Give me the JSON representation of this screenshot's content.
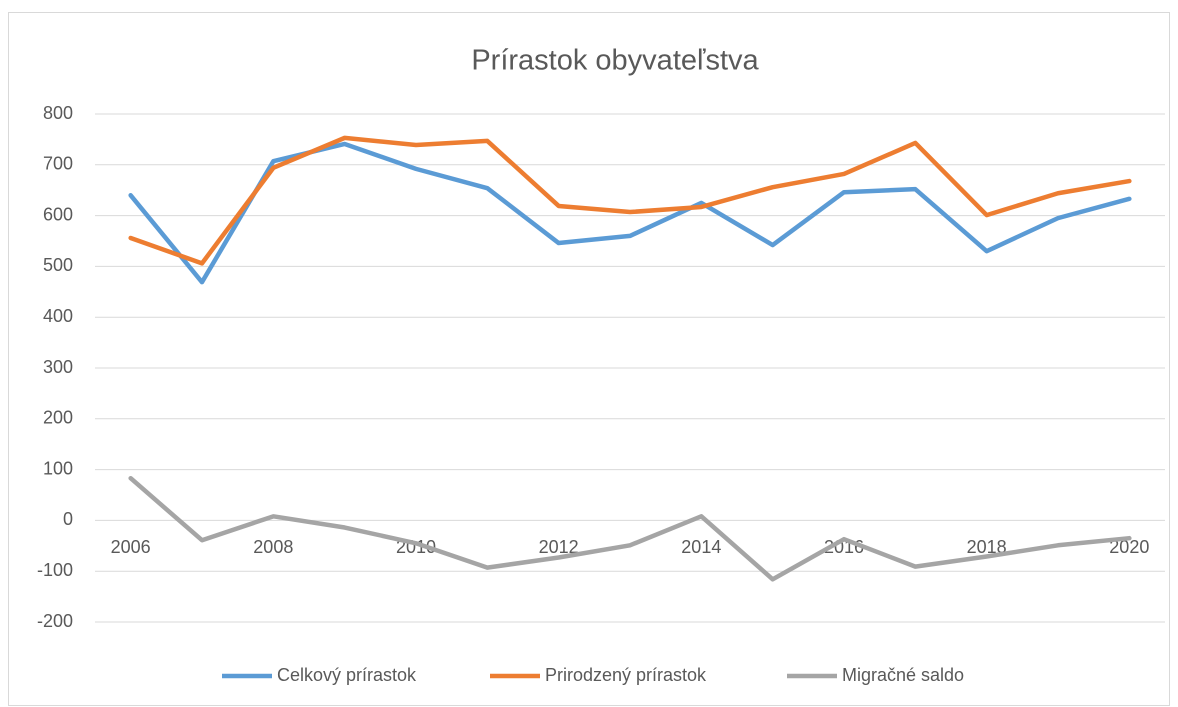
{
  "chart_data": {
    "type": "line",
    "title": "Prírastok obyvateľstva",
    "categories": [
      "2006",
      null,
      "2008",
      null,
      "2010",
      null,
      "2012",
      null,
      "2014",
      null,
      "2016",
      null,
      "2018",
      null,
      "2020"
    ],
    "series": [
      {
        "name": "Celkový prírastok",
        "color": "#5b9bd5",
        "values": [
          640,
          469,
          707,
          741,
          692,
          654,
          546,
          560,
          625,
          542,
          646,
          652,
          530,
          595,
          633
        ]
      },
      {
        "name": "Prirodzený prírastok",
        "color": "#ed7d31",
        "values": [
          556,
          506,
          694,
          753,
          739,
          747,
          619,
          607,
          617,
          656,
          682,
          743,
          601,
          644,
          668
        ]
      },
      {
        "name": "Migračné saldo",
        "color": "#a5a5a5",
        "values": [
          83,
          -39,
          8,
          -14,
          -45,
          -93,
          -73,
          -49,
          8,
          -116,
          -37,
          -91,
          -71,
          -49,
          -35
        ]
      }
    ],
    "ylim": [
      -200,
      800
    ],
    "yticks": [
      -200,
      -100,
      0,
      100,
      200,
      300,
      400,
      500,
      600,
      700,
      800
    ],
    "grid": true,
    "legend": "bottom"
  }
}
